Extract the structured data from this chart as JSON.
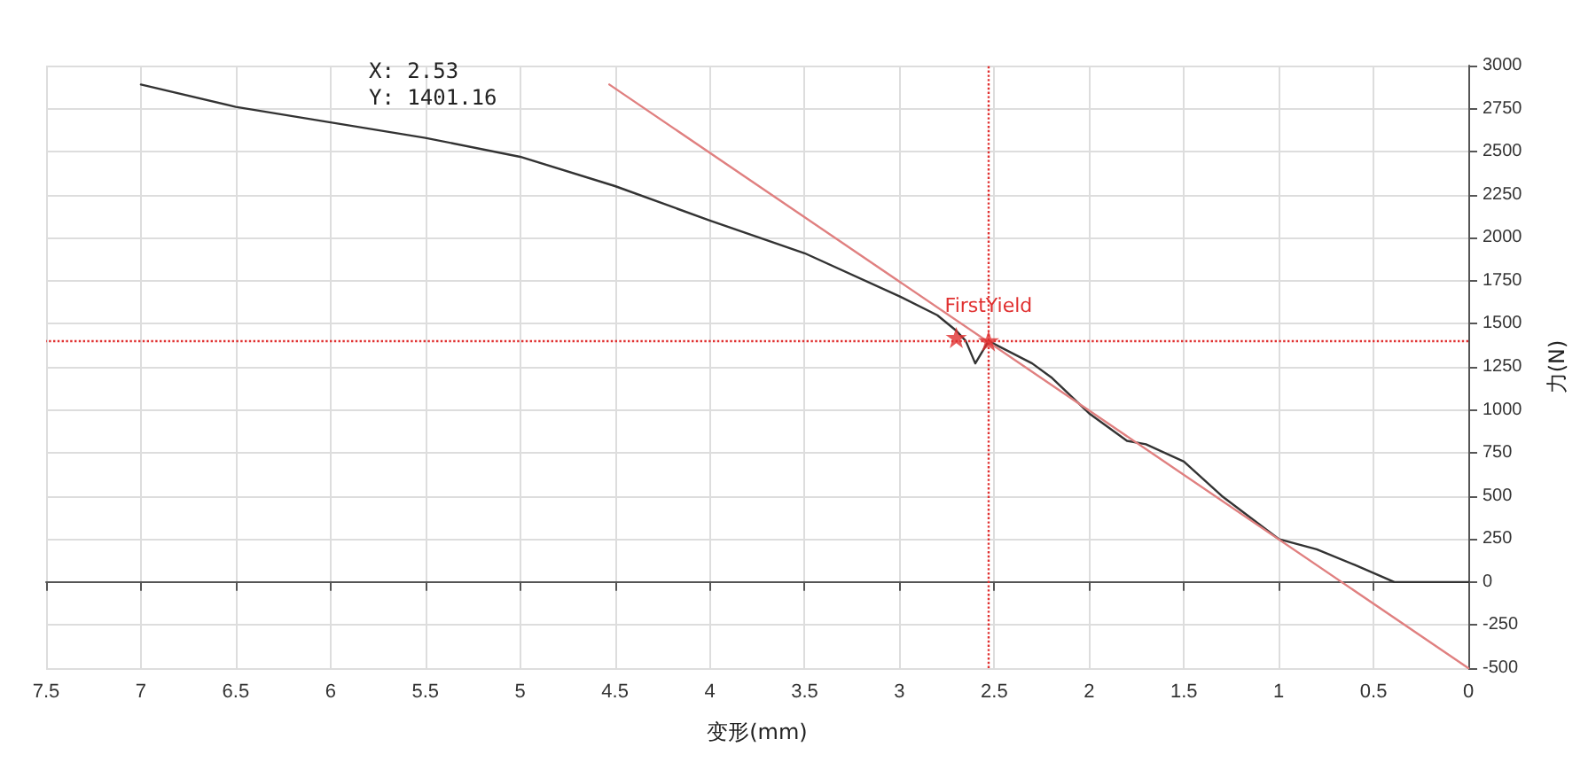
{
  "chart_data": {
    "type": "line",
    "xlabel": "变形(mm)",
    "ylabel": "力(N)",
    "xlim": [
      7.5,
      0
    ],
    "xticks": [
      0,
      0.5,
      1,
      1.5,
      2,
      2.5,
      3,
      3.5,
      4,
      4.5,
      5,
      5.5,
      6,
      6.5,
      7,
      7.5
    ],
    "ylim": [
      -500,
      3000
    ],
    "yticks": [
      -500,
      -250,
      0,
      250,
      500,
      750,
      1000,
      1250,
      1500,
      1750,
      2000,
      2250,
      2500,
      2750,
      3000
    ],
    "grid": true,
    "marker": "none",
    "line_style": "solid",
    "series": [
      {
        "color": "#333333",
        "x": [
          0,
          0.39,
          0.6,
          0.8,
          1,
          1.3,
          1.5,
          1.7,
          1.8,
          2,
          2.2,
          2.3,
          2.53,
          2.6,
          2.65,
          2.7,
          2.8,
          3,
          3.5,
          4,
          4.5,
          5,
          5.5,
          6,
          6.5,
          7
        ],
        "values": [
          0,
          0,
          100,
          190,
          250,
          500,
          700,
          800,
          820,
          980,
          1190,
          1270,
          1400,
          1270,
          1400,
          1460,
          1550,
          1660,
          1910,
          2100,
          2300,
          2470,
          2580,
          2670,
          2760,
          2890
        ]
      },
      {
        "color": "#e08080",
        "x": [
          0,
          4.53
        ],
        "values": [
          -500,
          2890
        ]
      },
      {
        "type": "scatter",
        "marker": "star",
        "color": "#e03030",
        "x": [
          2.7,
          2.53
        ],
        "values": [
          1420,
          1401.16
        ]
      }
    ],
    "ref_lines": [
      {
        "axis": "x",
        "value": 2.53,
        "color": "#e03030",
        "line_style": "dotted"
      },
      {
        "axis": "y",
        "value": 1401.16,
        "color": "#e03030",
        "line_style": "dotted"
      }
    ],
    "annotations": [
      "X: 2.53",
      "Y: 1401.16",
      {
        "text": "FirstYield",
        "x": 2.53,
        "y": 1401.16
      }
    ]
  }
}
